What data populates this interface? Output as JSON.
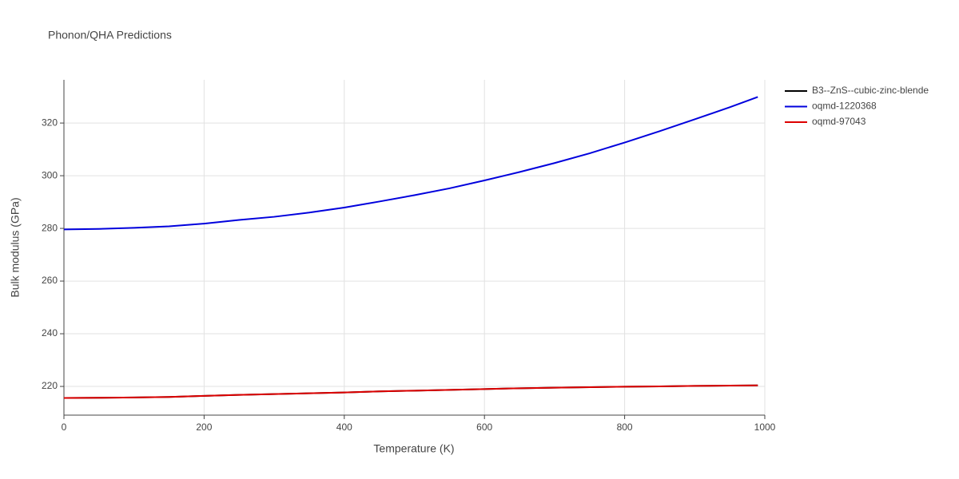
{
  "chart_data": {
    "type": "line",
    "title": "Phonon/QHA Predictions",
    "x_label": "Temperature (K)",
    "y_label": "Bulk modulus (GPa)",
    "x": [
      0,
      50,
      100,
      150,
      200,
      250,
      300,
      350,
      400,
      450,
      500,
      550,
      600,
      650,
      700,
      750,
      800,
      850,
      900,
      950,
      990
    ],
    "series": [
      {
        "name": "B3--ZnS--cubic-zinc-blende",
        "color": "#000000",
        "values": [
          215.6,
          215.7,
          215.8,
          216.0,
          216.4,
          216.8,
          217.1,
          217.4,
          217.7,
          218.1,
          218.4,
          218.7,
          219.0,
          219.3,
          219.5,
          219.7,
          219.9,
          220.0,
          220.2,
          220.3,
          220.4
        ]
      },
      {
        "name": "oqmd-1220368",
        "color": "#0000dd",
        "values": [
          279.6,
          279.8,
          280.2,
          280.8,
          281.8,
          283.2,
          284.4,
          286.0,
          287.9,
          290.2,
          292.6,
          295.2,
          298.2,
          301.4,
          304.8,
          308.5,
          312.6,
          316.9,
          321.4,
          326.0,
          329.9
        ]
      },
      {
        "name": "oqmd-97043",
        "color": "#dd0000",
        "values": [
          215.6,
          215.7,
          215.8,
          216.0,
          216.4,
          216.8,
          217.1,
          217.4,
          217.7,
          218.1,
          218.4,
          218.7,
          219.0,
          219.3,
          219.5,
          219.7,
          219.9,
          220.0,
          220.2,
          220.3,
          220.4
        ]
      }
    ],
    "xlim": [
      0,
      1000
    ],
    "xticks": [
      0,
      200,
      400,
      600,
      800,
      1000
    ],
    "ylim": [
      209.1,
      336.4
    ],
    "yticks": [
      220,
      240,
      260,
      280,
      300,
      320
    ],
    "grid": true,
    "legend": "top-right"
  }
}
